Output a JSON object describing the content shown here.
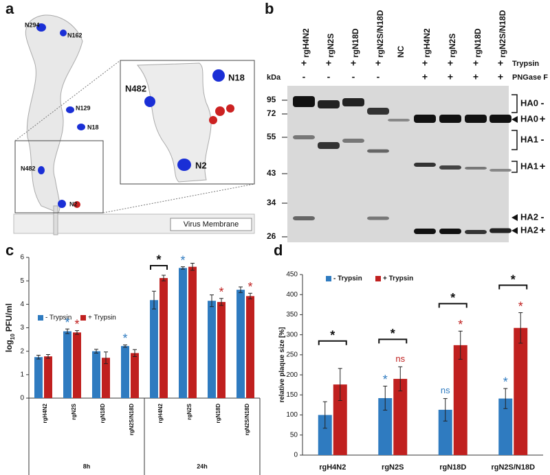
{
  "panel_labels": [
    "a",
    "b",
    "c",
    "d"
  ],
  "structure": {
    "glycosites": [
      "N294",
      "N162",
      "N129",
      "N18",
      "N482",
      "N2"
    ],
    "inset_glycosites": [
      "N18",
      "N482",
      "N2"
    ],
    "membrane": "Virus Membrane"
  },
  "gel": {
    "lanes": [
      "rgH4N2",
      "rgN2S",
      "rgN18D",
      "rgN2S/N18D",
      "NC",
      "rgH4N2",
      "rgN2S",
      "rgN18D",
      "rgN2S/N18D"
    ],
    "rows": [
      {
        "label": "Trypsin",
        "signs": [
          "+",
          "+",
          "+",
          "+",
          null,
          "+",
          "+",
          "+",
          "+"
        ]
      },
      {
        "label": "PNGase F",
        "signs": [
          "-",
          "-",
          "-",
          "-",
          null,
          "+",
          "+",
          "+",
          "+"
        ]
      }
    ],
    "unit": "kDa",
    "markers": [
      95,
      72,
      55,
      43,
      34,
      26
    ],
    "bands": [
      {
        "label": "HA0",
        "sign": "-"
      },
      {
        "label": "HA0",
        "sign": "+"
      },
      {
        "label": "HA1",
        "sign": "-"
      },
      {
        "label": "HA1",
        "sign": "+"
      },
      {
        "label": "HA2",
        "sign": "-"
      },
      {
        "label": "HA2",
        "sign": "+"
      }
    ]
  },
  "chart_data": [
    {
      "type": "bar",
      "y_label": [
        "log",
        "10",
        "PFU/ml"
      ],
      "categories": [
        "rgH4N2",
        "rgN2S",
        "rgN18D",
        "rgN2S/N18D",
        "rgH4N2",
        "rgN2S",
        "rgN18D",
        "rgN2S/N18D"
      ],
      "group_labels": [
        "8h",
        "24h"
      ],
      "series": [
        {
          "name": "- Trypsin",
          "color": "#2f7bc0",
          "values": [
            1.75,
            2.85,
            2.0,
            2.22,
            4.18,
            5.55,
            4.15,
            4.62
          ],
          "errors": [
            0.08,
            0.1,
            0.08,
            0.05,
            0.38,
            0.05,
            0.25,
            0.12
          ],
          "significance": [
            null,
            "*",
            null,
            "*",
            null,
            "*",
            null,
            null
          ]
        },
        {
          "name": "+ Trypsin",
          "color": "#c0201f",
          "values": [
            1.78,
            2.8,
            1.72,
            1.92,
            5.12,
            5.6,
            4.1,
            4.35
          ],
          "errors": [
            0.08,
            0.08,
            0.25,
            0.15,
            0.12,
            0.15,
            0.15,
            0.12
          ],
          "significance": [
            null,
            "*",
            null,
            null,
            null,
            null,
            "*",
            "*"
          ]
        }
      ],
      "brackets": [
        null,
        null,
        null,
        null,
        "*",
        null,
        null,
        null
      ],
      "ylim": [
        0,
        6
      ],
      "yticks": [
        0,
        1,
        2,
        3,
        4,
        5,
        6
      ]
    },
    {
      "type": "bar",
      "y_label": [
        "relative plaque size [%]"
      ],
      "categories": [
        "rgH4N2",
        "rgN2S",
        "rgN18D",
        "rgN2S/N18D"
      ],
      "series": [
        {
          "name": "- Trypsin",
          "color": "#2f7bc0",
          "values": [
            100,
            142,
            113,
            141
          ],
          "errors": [
            33,
            30,
            28,
            25
          ],
          "significance": [
            null,
            "*",
            "ns",
            "*"
          ]
        },
        {
          "name": "+ Trypsin",
          "color": "#c0201f",
          "values": [
            176,
            190,
            274,
            317
          ],
          "errors": [
            40,
            30,
            35,
            38
          ],
          "significance": [
            null,
            "ns",
            "*",
            "*"
          ]
        }
      ],
      "brackets": [
        "*",
        "*",
        "*",
        "*"
      ],
      "ylim": [
        0,
        450
      ],
      "yticks": [
        0,
        50,
        100,
        150,
        200,
        250,
        300,
        350,
        400,
        450
      ]
    }
  ]
}
